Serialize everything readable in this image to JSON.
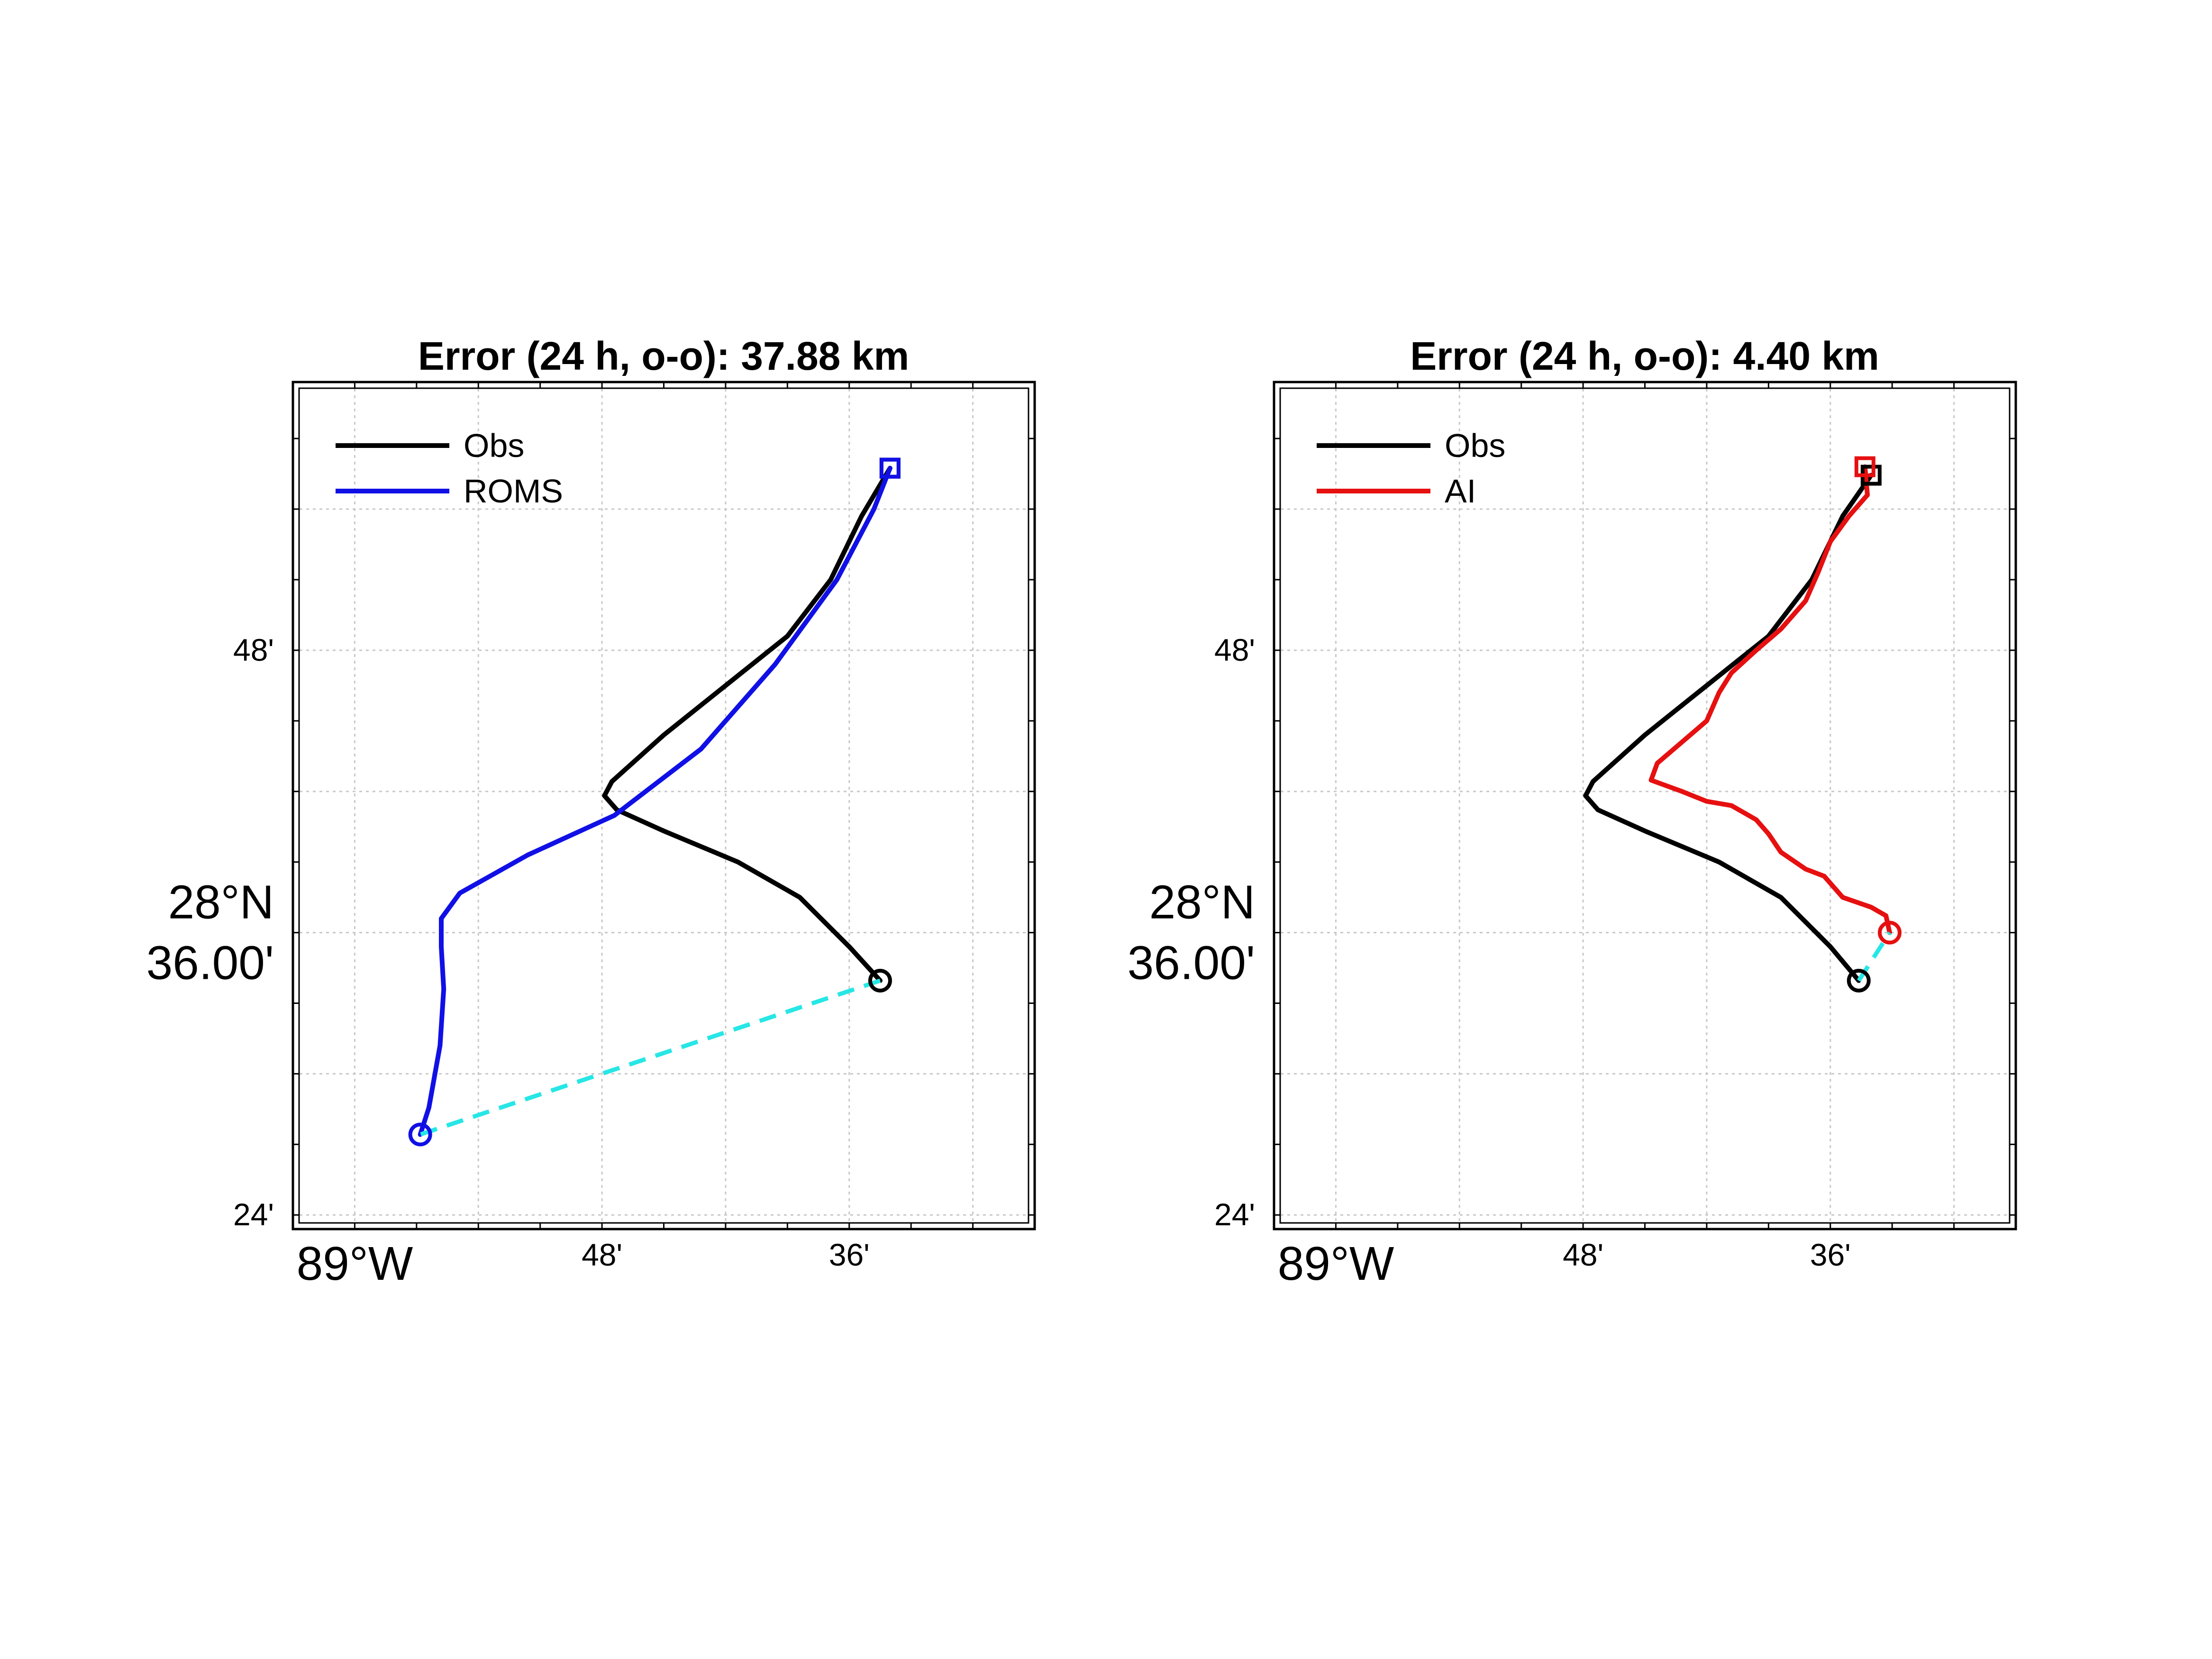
{
  "chart_data": [
    {
      "type": "line",
      "title": "Error (24 h, o-o): 37.88 km",
      "x_tick_labels": [
        "89°W",
        "48'",
        "36'"
      ],
      "y_tick_labels": [
        "24'",
        "28°N\n36.00'",
        "48'"
      ],
      "x_ticks_deg": [
        -89.0,
        -88.8,
        -88.6
      ],
      "y_ticks_deg": [
        28.4,
        28.6,
        28.8
      ],
      "xlim": [
        -89.05,
        -88.45
      ],
      "ylim": [
        28.39,
        28.99
      ],
      "grid": true,
      "legend_position": "top-left",
      "error_line_color": "#27E6E6",
      "series": [
        {
          "name": "Obs",
          "color": "#000000",
          "start_marker": "circle",
          "end_marker": "square",
          "x": [
            -88.575,
            -88.6,
            -88.64,
            -88.69,
            -88.75,
            -88.788,
            -88.798,
            -88.792,
            -88.75,
            -88.7,
            -88.65,
            -88.615,
            -88.59,
            -88.567
          ],
          "y": [
            28.566,
            28.59,
            28.625,
            28.65,
            28.672,
            28.687,
            28.697,
            28.707,
            28.74,
            28.775,
            28.81,
            28.85,
            28.895,
            28.929
          ]
        },
        {
          "name": "ROMS",
          "color": "#1010E6",
          "start_marker": "circle",
          "end_marker": "square",
          "x": [
            -88.947,
            -88.94,
            -88.931,
            -88.928,
            -88.93,
            -88.93,
            -88.915,
            -88.86,
            -88.79,
            -88.72,
            -88.66,
            -88.61,
            -88.58,
            -88.567
          ],
          "y": [
            28.457,
            28.476,
            28.52,
            28.56,
            28.59,
            28.61,
            28.628,
            28.655,
            28.683,
            28.73,
            28.79,
            28.85,
            28.9,
            28.929
          ]
        }
      ]
    },
    {
      "type": "line",
      "title": "Error (24 h, o-o): 4.40 km",
      "x_tick_labels": [
        "89°W",
        "48'",
        "36'"
      ],
      "y_tick_labels": [
        "24'",
        "28°N\n36.00'",
        "48'"
      ],
      "x_ticks_deg": [
        -89.0,
        -88.8,
        -88.6
      ],
      "y_ticks_deg": [
        28.4,
        28.6,
        28.8
      ],
      "xlim": [
        -89.05,
        -88.45
      ],
      "ylim": [
        28.39,
        28.99
      ],
      "grid": true,
      "legend_position": "top-left",
      "error_line_color": "#27E6E6",
      "series": [
        {
          "name": "Obs",
          "color": "#000000",
          "start_marker": "circle",
          "end_marker": "square",
          "x": [
            -88.577,
            -88.6,
            -88.64,
            -88.69,
            -88.75,
            -88.788,
            -88.798,
            -88.792,
            -88.75,
            -88.7,
            -88.65,
            -88.615,
            -88.59,
            -88.567
          ],
          "y": [
            28.566,
            28.59,
            28.625,
            28.65,
            28.672,
            28.687,
            28.697,
            28.707,
            28.74,
            28.775,
            28.81,
            28.85,
            28.895,
            28.924
          ]
        },
        {
          "name": "AI",
          "color": "#E61010",
          "start_marker": "circle",
          "end_marker": "square",
          "x": [
            -88.552,
            -88.555,
            -88.567,
            -88.59,
            -88.605,
            -88.62,
            -88.64,
            -88.65,
            -88.66,
            -88.68,
            -88.7,
            -88.72,
            -88.745,
            -88.74,
            -88.72,
            -88.7,
            -88.69,
            -88.68,
            -88.66,
            -88.64,
            -88.62,
            -88.61,
            -88.6,
            -88.585,
            -88.57,
            -88.572
          ],
          "y": [
            28.6,
            28.612,
            28.618,
            28.625,
            28.64,
            28.645,
            28.657,
            28.67,
            28.68,
            28.69,
            28.693,
            28.7,
            28.708,
            28.72,
            28.735,
            28.75,
            28.77,
            28.784,
            28.8,
            28.815,
            28.835,
            28.855,
            28.877,
            28.895,
            28.91,
            28.93
          ]
        }
      ]
    }
  ]
}
